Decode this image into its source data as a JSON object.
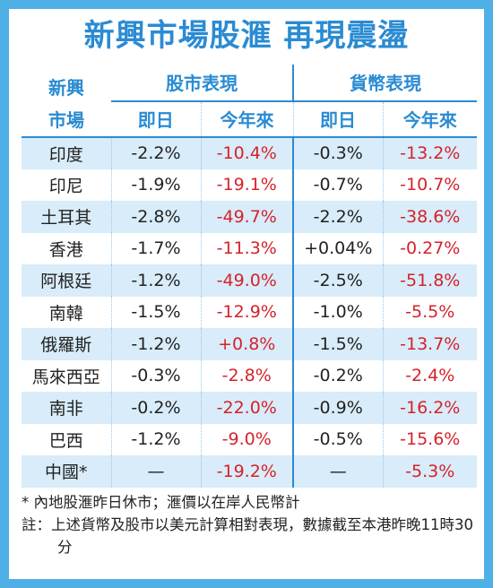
{
  "title": "新興市場股滙 再現震盪",
  "header": {
    "market": "新興\n市場",
    "market_line1": "新興",
    "market_line2": "市場",
    "stock_group": "股市表現",
    "currency_group": "貨幣表現",
    "stock_day": "即日",
    "stock_ytd": "今年來",
    "currency_day": "即日",
    "currency_ytd": "今年來"
  },
  "rows": [
    {
      "market": "印度",
      "stock_day": "-2.2%",
      "stock_ytd": "-10.4%",
      "fx_day": "-0.3%",
      "fx_ytd": "-13.2%"
    },
    {
      "market": "印尼",
      "stock_day": "-1.9%",
      "stock_ytd": "-19.1%",
      "fx_day": "-0.7%",
      "fx_ytd": "-10.7%"
    },
    {
      "market": "土耳其",
      "stock_day": "-2.8%",
      "stock_ytd": "-49.7%",
      "fx_day": "-2.2%",
      "fx_ytd": "-38.6%"
    },
    {
      "market": "香港",
      "stock_day": "-1.7%",
      "stock_ytd": "-11.3%",
      "fx_day": "+0.04%",
      "fx_ytd": "-0.27%"
    },
    {
      "market": "阿根廷",
      "stock_day": "-1.2%",
      "stock_ytd": "-49.0%",
      "fx_day": "-2.5%",
      "fx_ytd": "-51.8%"
    },
    {
      "market": "南韓",
      "stock_day": "-1.5%",
      "stock_ytd": "-12.9%",
      "fx_day": "-1.0%",
      "fx_ytd": "-5.5%"
    },
    {
      "market": "俄羅斯",
      "stock_day": "-1.2%",
      "stock_ytd": "+0.8%",
      "fx_day": "-1.5%",
      "fx_ytd": "-13.7%"
    },
    {
      "market": "馬來西亞",
      "stock_day": "-0.3%",
      "stock_ytd": "-2.8%",
      "fx_day": "-0.2%",
      "fx_ytd": "-2.4%"
    },
    {
      "market": "南非",
      "stock_day": "-0.2%",
      "stock_ytd": "-22.0%",
      "fx_day": "-0.9%",
      "fx_ytd": "-16.2%"
    },
    {
      "market": "巴西",
      "stock_day": "-1.2%",
      "stock_ytd": "-9.0%",
      "fx_day": "-0.5%",
      "fx_ytd": "-15.6%"
    },
    {
      "market": "中國*",
      "stock_day": "—",
      "stock_ytd": "-19.2%",
      "fx_day": "—",
      "fx_ytd": "-5.3%"
    }
  ],
  "notes": {
    "note1": "* 內地股滙昨日休市；滙價以在岸人民幣計",
    "note2": "註：上述貨幣及股市以美元計算相對表現，數據截至本港昨晚11時30分"
  },
  "colors": {
    "border": "#4fb0e6",
    "accent": "#2a8bd3",
    "row_alt": "#d8ecf9",
    "ytd_text": "#d6222a"
  }
}
